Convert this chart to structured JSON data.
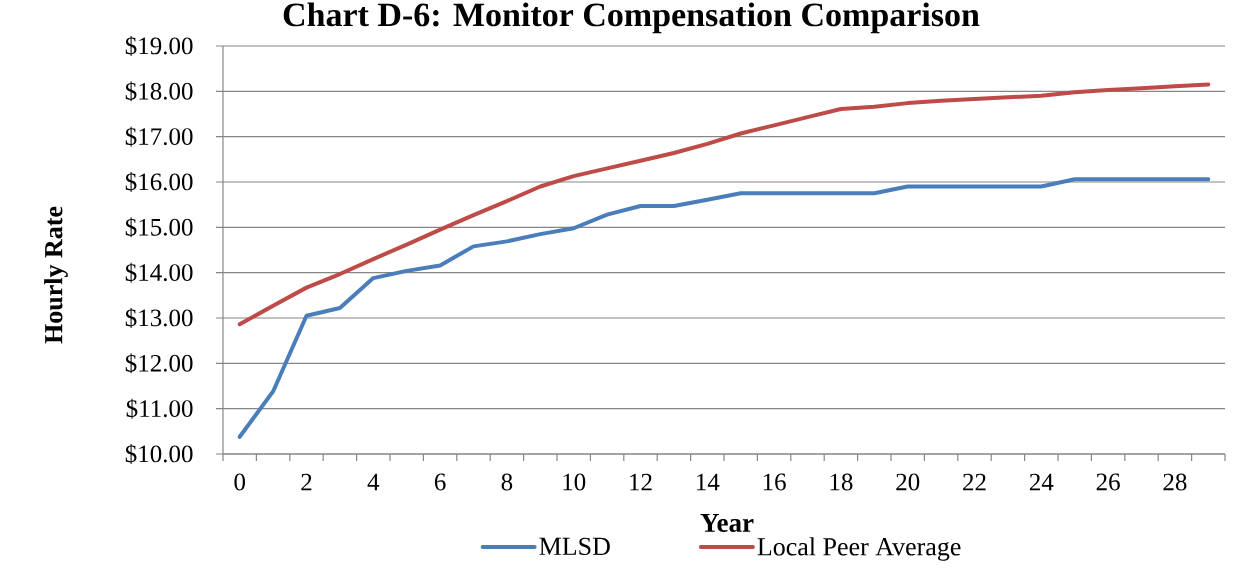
{
  "chart_data": {
    "type": "line",
    "title": "Chart D-6: Monitor Compensation Comparison",
    "xlabel": "Year",
    "ylabel": "Hourly Rate",
    "categories": [
      "0",
      null,
      "2",
      null,
      "4",
      null,
      "6",
      null,
      "8",
      null,
      "10",
      null,
      "12",
      null,
      "14",
      null,
      "16",
      null,
      "18",
      null,
      "20",
      null,
      "22",
      null,
      "24",
      null,
      "26",
      null,
      "28",
      null
    ],
    "series": [
      {
        "name": "MLSD",
        "color": "#4a7ebb",
        "values": [
          10.38,
          11.38,
          13.05,
          13.22,
          13.88,
          14.04,
          14.16,
          14.58,
          14.69,
          14.85,
          14.98,
          15.28,
          15.47,
          15.47,
          15.61,
          15.75,
          15.75,
          15.75,
          15.75,
          15.75,
          15.9,
          15.9,
          15.9,
          15.9,
          15.9,
          16.06,
          16.06,
          16.06,
          16.06,
          16.06
        ]
      },
      {
        "name": "Local Peer Average",
        "color": "#be4b48",
        "values": [
          12.86,
          13.27,
          13.67,
          13.97,
          14.3,
          14.62,
          14.95,
          15.27,
          15.58,
          15.9,
          16.13,
          16.3,
          16.47,
          16.64,
          16.84,
          17.07,
          17.25,
          17.43,
          17.61,
          17.66,
          17.74,
          17.79,
          17.83,
          17.87,
          17.9,
          17.98,
          18.03,
          18.07,
          18.11,
          18.15
        ]
      }
    ],
    "ylim": [
      10,
      19
    ],
    "yticks": [
      {
        "value": 10,
        "label": "$10.00"
      },
      {
        "value": 11,
        "label": "$11.00"
      },
      {
        "value": 12,
        "label": "$12.00"
      },
      {
        "value": 13,
        "label": "$13.00"
      },
      {
        "value": 14,
        "label": "$14.00"
      },
      {
        "value": 15,
        "label": "$15.00"
      },
      {
        "value": 16,
        "label": "$16.00"
      },
      {
        "value": 17,
        "label": "$17.00"
      },
      {
        "value": 18,
        "label": "$18.00"
      },
      {
        "value": 19,
        "label": "$19.00"
      }
    ],
    "grid": "y",
    "legend": "bottom",
    "marker": "none",
    "line_style": "solid"
  }
}
